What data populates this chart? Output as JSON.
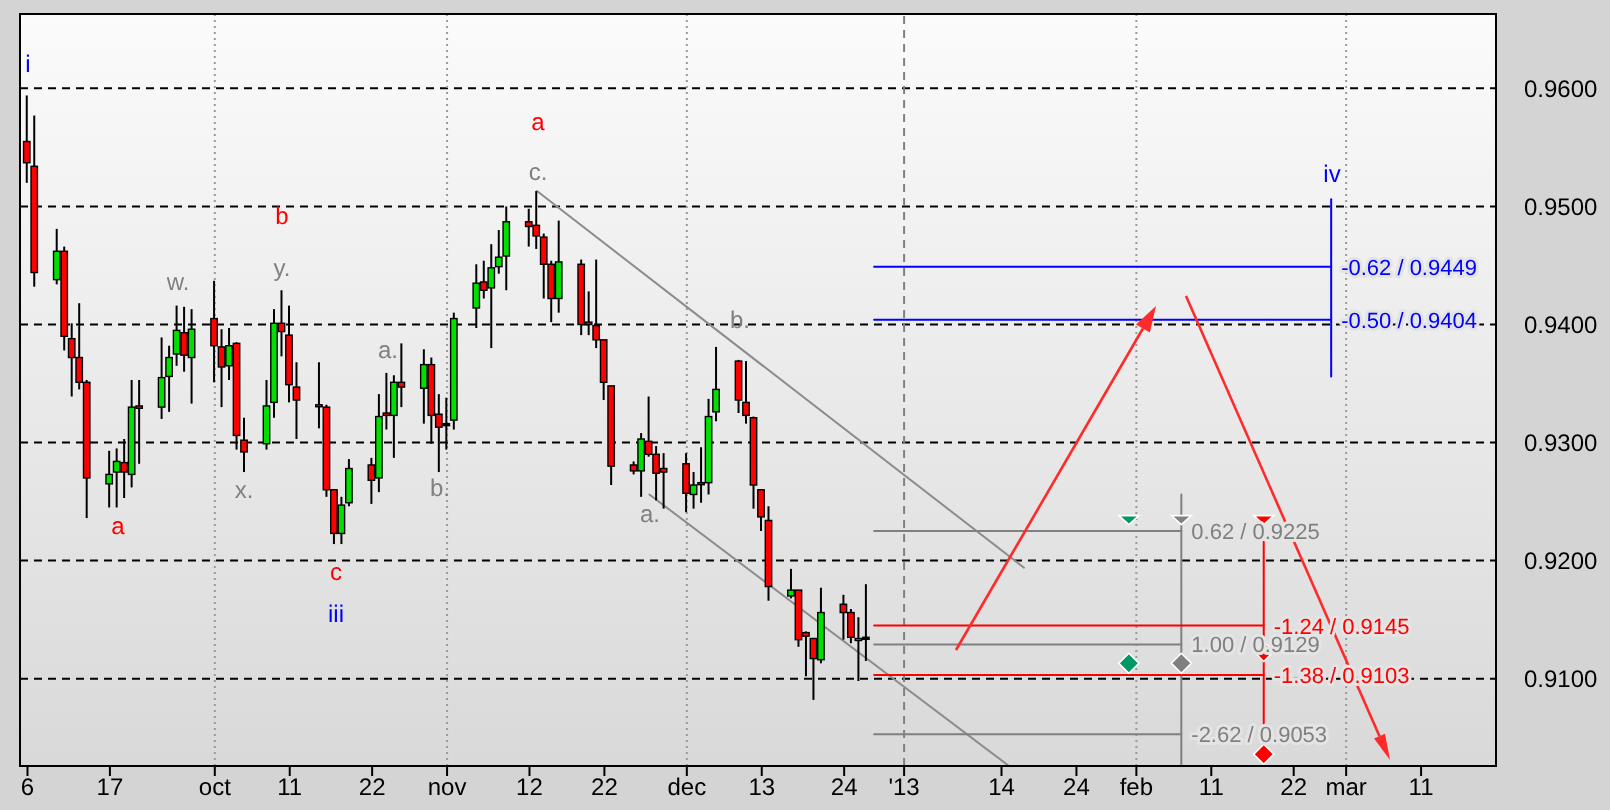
{
  "chart_data": {
    "type": "candlestick",
    "x": [
      "2012-09-06",
      "2012-09-07",
      "2012-09-10",
      "2012-09-11",
      "2012-09-12",
      "2012-09-13",
      "2012-09-14",
      "2012-09-17",
      "2012-09-18",
      "2012-09-19",
      "2012-09-20",
      "2012-09-21",
      "2012-09-24",
      "2012-09-25",
      "2012-09-26",
      "2012-09-27",
      "2012-09-28",
      "2012-10-01",
      "2012-10-02",
      "2012-10-03",
      "2012-10-04",
      "2012-10-05",
      "2012-10-08",
      "2012-10-09",
      "2012-10-10",
      "2012-10-11",
      "2012-10-12",
      "2012-10-15",
      "2012-10-16",
      "2012-10-17",
      "2012-10-18",
      "2012-10-19",
      "2012-10-22",
      "2012-10-23",
      "2012-10-24",
      "2012-10-25",
      "2012-10-26",
      "2012-10-29",
      "2012-10-30",
      "2012-10-31",
      "2012-11-01",
      "2012-11-02",
      "2012-11-05",
      "2012-11-06",
      "2012-11-07",
      "2012-11-08",
      "2012-11-09",
      "2012-11-12",
      "2012-11-13",
      "2012-11-14",
      "2012-11-15",
      "2012-11-16",
      "2012-11-19",
      "2012-11-20",
      "2012-11-21",
      "2012-11-22",
      "2012-11-23",
      "2012-11-26",
      "2012-11-27",
      "2012-11-28",
      "2012-11-29",
      "2012-11-30",
      "2012-12-03",
      "2012-12-04",
      "2012-12-05",
      "2012-12-06",
      "2012-12-07",
      "2012-12-10",
      "2012-12-11",
      "2012-12-12",
      "2012-12-13",
      "2012-12-14",
      "2012-12-17",
      "2012-12-18",
      "2012-12-19",
      "2012-12-20",
      "2012-12-21",
      "2012-12-24",
      "2012-12-25",
      "2012-12-26",
      "2012-12-27"
    ],
    "ohlc": [
      [
        0.9555,
        0.9594,
        0.952,
        0.9537
      ],
      [
        0.9534,
        0.9577,
        0.9432,
        0.9444
      ],
      [
        0.9438,
        0.9481,
        0.9434,
        0.9462
      ],
      [
        0.9462,
        0.9466,
        0.9378,
        0.939
      ],
      [
        0.9388,
        0.9401,
        0.9339,
        0.9372
      ],
      [
        0.9372,
        0.9418,
        0.9345,
        0.9351
      ],
      [
        0.9351,
        0.9353,
        0.9236,
        0.927
      ],
      [
        0.9265,
        0.9293,
        0.9245,
        0.9273
      ],
      [
        0.9275,
        0.9295,
        0.9245,
        0.9284
      ],
      [
        0.9283,
        0.9303,
        0.9253,
        0.9275
      ],
      [
        0.9273,
        0.9353,
        0.9262,
        0.933
      ],
      [
        0.9331,
        0.9353,
        0.9282,
        0.9329
      ],
      [
        0.933,
        0.9389,
        0.932,
        0.9355
      ],
      [
        0.9356,
        0.9382,
        0.9326,
        0.9372
      ],
      [
        0.9375,
        0.9416,
        0.9365,
        0.9395
      ],
      [
        0.9393,
        0.9415,
        0.936,
        0.9374
      ],
      [
        0.9372,
        0.9413,
        0.9333,
        0.9396
      ],
      [
        0.9405,
        0.9437,
        0.9351,
        0.9382
      ],
      [
        0.9381,
        0.9396,
        0.933,
        0.9364
      ],
      [
        0.9365,
        0.9397,
        0.9353,
        0.9382
      ],
      [
        0.9384,
        0.9385,
        0.9294,
        0.9306
      ],
      [
        0.9302,
        0.9321,
        0.9275,
        0.9292
      ],
      [
        0.9299,
        0.9353,
        0.9294,
        0.9331
      ],
      [
        0.9334,
        0.9413,
        0.9321,
        0.9401
      ],
      [
        0.9401,
        0.9429,
        0.9373,
        0.9394
      ],
      [
        0.9391,
        0.9416,
        0.9334,
        0.9349
      ],
      [
        0.9347,
        0.9368,
        0.9303,
        0.9336
      ],
      [
        0.9332,
        0.9368,
        0.9312,
        0.9331
      ],
      [
        0.933,
        0.9332,
        0.9254,
        0.926
      ],
      [
        0.926,
        0.926,
        0.9214,
        0.9223
      ],
      [
        0.9223,
        0.9254,
        0.9214,
        0.9247
      ],
      [
        0.9249,
        0.9286,
        0.9246,
        0.9278
      ],
      [
        0.9281,
        0.9287,
        0.9248,
        0.9268
      ],
      [
        0.927,
        0.9341,
        0.9258,
        0.9322
      ],
      [
        0.9325,
        0.9359,
        0.9311,
        0.9323
      ],
      [
        0.9323,
        0.9357,
        0.9287,
        0.9351
      ],
      [
        0.9351,
        0.9384,
        0.933,
        0.9347
      ],
      [
        0.9346,
        0.9379,
        0.9316,
        0.9366
      ],
      [
        0.9366,
        0.9372,
        0.9299,
        0.9323
      ],
      [
        0.9324,
        0.9341,
        0.9275,
        0.9313
      ],
      [
        0.9316,
        0.9338,
        0.9294,
        0.9316
      ],
      [
        0.9319,
        0.941,
        0.9311,
        0.9405
      ],
      [
        0.9414,
        0.9451,
        0.9397,
        0.9435
      ],
      [
        0.9436,
        0.9454,
        0.9422,
        0.9429
      ],
      [
        0.9431,
        0.9468,
        0.938,
        0.9448
      ],
      [
        0.9449,
        0.948,
        0.9443,
        0.9457
      ],
      [
        0.9458,
        0.95,
        0.9429,
        0.9487
      ],
      [
        0.9487,
        0.9498,
        0.9466,
        0.9483
      ],
      [
        0.9484,
        0.9513,
        0.9464,
        0.9475
      ],
      [
        0.9474,
        0.9477,
        0.9422,
        0.9451
      ],
      [
        0.9451,
        0.9454,
        0.9402,
        0.9422
      ],
      [
        0.9422,
        0.9488,
        0.941,
        0.9453
      ],
      [
        0.9451,
        0.9455,
        0.9391,
        0.94
      ],
      [
        0.9402,
        0.9428,
        0.9391,
        0.94
      ],
      [
        0.9399,
        0.9455,
        0.938,
        0.9387
      ],
      [
        0.9387,
        0.9387,
        0.9336,
        0.9351
      ],
      [
        0.9348,
        0.9348,
        0.9264,
        0.928
      ],
      [
        0.9281,
        0.9284,
        0.9273,
        0.9276
      ],
      [
        0.9276,
        0.9308,
        0.9254,
        0.9303
      ],
      [
        0.9301,
        0.9339,
        0.9288,
        0.929
      ],
      [
        0.929,
        0.9297,
        0.9251,
        0.9274
      ],
      [
        0.9278,
        0.9291,
        0.9244,
        0.9275
      ],
      [
        0.9282,
        0.9291,
        0.9241,
        0.9257
      ],
      [
        0.9256,
        0.9275,
        0.9244,
        0.9264
      ],
      [
        0.9266,
        0.9296,
        0.9249,
        0.9265
      ],
      [
        0.9266,
        0.9337,
        0.9256,
        0.9322
      ],
      [
        0.9326,
        0.9381,
        0.9318,
        0.9345
      ],
      [
        0.9369,
        0.937,
        0.9325,
        0.9336
      ],
      [
        0.9334,
        0.9369,
        0.9316,
        0.9323
      ],
      [
        0.9321,
        0.9322,
        0.9244,
        0.9264
      ],
      [
        0.926,
        0.926,
        0.9225,
        0.9237
      ],
      [
        0.9234,
        0.9246,
        0.9166,
        0.9178
      ],
      [
        0.917,
        0.9193,
        0.9168,
        0.9175
      ],
      [
        0.9175,
        0.9175,
        0.9127,
        0.9133
      ],
      [
        0.9139,
        0.914,
        0.9102,
        0.9136
      ],
      [
        0.9134,
        0.9134,
        0.9082,
        0.9117
      ],
      [
        0.9116,
        0.9177,
        0.9113,
        0.9156
      ],
      [
        0.9163,
        0.9171,
        0.9133,
        0.9156
      ],
      [
        0.9156,
        0.9159,
        0.913,
        0.9135
      ],
      [
        0.9133,
        0.9152,
        0.9098,
        0.9134
      ],
      [
        0.9135,
        0.918,
        0.9115,
        0.9135
      ]
    ],
    "colors": [
      "#ff0000",
      "#ff0000",
      "#00e000",
      "#ff0000",
      "#ff0000",
      "#ff0000",
      "#ff0000",
      "#00e000",
      "#00e000",
      "#ff0000",
      "#00e000",
      "#ff0000",
      "#00e000",
      "#00e000",
      "#00e000",
      "#ff0000",
      "#00e000",
      "#ff0000",
      "#ff0000",
      "#00e000",
      "#ff0000",
      "#ff0000",
      "#00e000",
      "#00e000",
      "#ff0000",
      "#ff0000",
      "#ff0000",
      "#ff0000",
      "#ff0000",
      "#ff0000",
      "#00e000",
      "#00e000",
      "#ff0000",
      "#00e000",
      "#ff0000",
      "#00e000",
      "#ff0000",
      "#00e000",
      "#ff0000",
      "#ff0000",
      "#000000",
      "#00e000",
      "#00e000",
      "#ff0000",
      "#00e000",
      "#00e000",
      "#00e000",
      "#ff0000",
      "#ff0000",
      "#ff0000",
      "#ff0000",
      "#00e000",
      "#ff0000",
      "#ff0000",
      "#ff0000",
      "#ff0000",
      "#ff0000",
      "#ff0000",
      "#00e000",
      "#ff0000",
      "#ff0000",
      "#ff0000",
      "#ff0000",
      "#00e000",
      "#ff0000",
      "#00e000",
      "#00e000",
      "#ff0000",
      "#ff0000",
      "#ff0000",
      "#ff0000",
      "#ff0000",
      "#00e000",
      "#ff0000",
      "#ff0000",
      "#ff0000",
      "#00e000",
      "#ff0000",
      "#ff0000",
      "#00e000",
      "#000000"
    ],
    "series": [
      {
        "type": "line",
        "color": "#8c8c8c",
        "x": [
          "2012-11-13",
          "2013-01-17"
        ],
        "values": [
          0.9513,
          0.9194
        ]
      },
      {
        "type": "line",
        "color": "#8c8c8c",
        "x": [
          "2012-11-28",
          "2013-01-15"
        ],
        "values": [
          0.9256,
          0.9026
        ]
      },
      {
        "type": "line",
        "color": "#0000ff",
        "x": [
          "2012-12-28",
          "2013-02-27"
        ],
        "values": [
          0.9449,
          0.9449
        ]
      },
      {
        "type": "line",
        "color": "#0000ff",
        "x": [
          "2012-12-28",
          "2013-02-27"
        ],
        "values": [
          0.9404,
          0.9404
        ]
      },
      {
        "type": "line",
        "color": "#0000ff",
        "x": [
          "2013-02-27",
          "2013-02-27"
        ],
        "values": [
          0.9506,
          0.9356
        ]
      },
      {
        "type": "line",
        "color": "#808080",
        "x": [
          "2012-12-28",
          "2013-02-07"
        ],
        "values": [
          0.9225,
          0.9225
        ]
      },
      {
        "type": "line",
        "color": "#808080",
        "x": [
          "2012-12-28",
          "2013-02-07"
        ],
        "values": [
          0.9129,
          0.9129
        ]
      },
      {
        "type": "line",
        "color": "#808080",
        "x": [
          "2012-12-28",
          "2013-02-07"
        ],
        "values": [
          0.9053,
          0.9053
        ]
      },
      {
        "type": "line",
        "color": "#808080",
        "x": [
          "2013-02-07",
          "2013-02-07"
        ],
        "values": [
          0.9256,
          0.9026
        ]
      },
      {
        "type": "line",
        "color": "#ff0000",
        "x": [
          "2012-12-28",
          "2013-02-18"
        ],
        "values": [
          0.9145,
          0.9145
        ]
      },
      {
        "type": "line",
        "color": "#ff0000",
        "x": [
          "2012-12-28",
          "2013-02-18"
        ],
        "values": [
          0.9103,
          0.9103
        ]
      },
      {
        "type": "line",
        "color": "#ff0000",
        "x": [
          "2013-02-18",
          "2013-02-18"
        ],
        "values": [
          0.9216,
          0.9052
        ]
      },
      {
        "type": "scatter",
        "marker": "triangle",
        "x": [
          "2013-01-31",
          "2013-02-07",
          "2013-02-18"
        ],
        "values": [
          0.9233,
          0.9233,
          0.9233
        ],
        "colors": [
          "#009966",
          "#808080",
          "#ff0000"
        ]
      },
      {
        "type": "scatter",
        "marker": "diamond",
        "x": [
          "2013-01-31",
          "2013-02-07",
          "2013-02-18",
          "2013-02-18"
        ],
        "values": [
          0.9113,
          0.9113,
          0.9123,
          0.9036
        ],
        "colors": [
          "#009966",
          "#808080",
          "#ff0000",
          "#ff0000"
        ]
      }
    ],
    "xlim": [
      "2012-09-05",
      "2013-03-21"
    ],
    "xticks": [
      {
        "value": "2012-09-06",
        "label": "6"
      },
      {
        "value": "2012-09-17",
        "label": "17"
      },
      {
        "value": "2012-10-01",
        "label": "oct"
      },
      {
        "value": "2012-10-11",
        "label": "11"
      },
      {
        "value": "2012-10-22",
        "label": "22"
      },
      {
        "value": "2012-11-01",
        "label": "nov"
      },
      {
        "value": "2012-11-12",
        "label": "12"
      },
      {
        "value": "2012-11-22",
        "label": "22"
      },
      {
        "value": "2012-12-03",
        "label": "dec"
      },
      {
        "value": "2012-12-13",
        "label": "13"
      },
      {
        "value": "2012-12-24",
        "label": "24"
      },
      {
        "value": "2013-01-01",
        "label": "'13"
      },
      {
        "value": "2013-01-14",
        "label": "14"
      },
      {
        "value": "2013-01-24",
        "label": "24"
      },
      {
        "value": "2013-02-01",
        "label": "feb"
      },
      {
        "value": "2013-02-11",
        "label": "11"
      },
      {
        "value": "2013-02-22",
        "label": "22"
      },
      {
        "value": "2013-03-01",
        "label": "mar"
      },
      {
        "value": "2013-03-11",
        "label": "11"
      }
    ],
    "ylim": [
      0.9026,
      0.9663
    ],
    "yticks": [
      {
        "value": 0.91,
        "label": "0.9100"
      },
      {
        "value": 0.92,
        "label": "0.9200"
      },
      {
        "value": 0.93,
        "label": "0.9300"
      },
      {
        "value": 0.94,
        "label": "0.9400"
      },
      {
        "value": 0.95,
        "label": "0.9500"
      },
      {
        "value": 0.96,
        "label": "0.9600"
      }
    ],
    "grid": "y",
    "ref_lines": [
      {
        "axis": "x",
        "value": "2012-10-01",
        "color": "#9a9a9a",
        "line_style": "dotted"
      },
      {
        "axis": "x",
        "value": "2012-11-01",
        "color": "#9a9a9a",
        "line_style": "dotted"
      },
      {
        "axis": "x",
        "value": "2012-12-03",
        "color": "#9a9a9a",
        "line_style": "dotted"
      },
      {
        "axis": "x",
        "value": "2013-01-01",
        "color": "#808080",
        "line_style": "dashed"
      },
      {
        "axis": "x",
        "value": "2013-02-01",
        "color": "#9a9a9a",
        "line_style": "dotted"
      },
      {
        "axis": "x",
        "value": "2013-03-01",
        "color": "#9a9a9a",
        "line_style": "dotted"
      }
    ],
    "annotations": [
      "i",
      "a",
      "w.",
      "b",
      "y.",
      "x.",
      "c",
      "iii",
      "a.",
      "b.",
      "a",
      "c.",
      "a.",
      "b.",
      "iv",
      {
        "text": "-0.62 / 0.9449",
        "x": "2013-02-27",
        "y": 0.9449
      },
      {
        "text": "-0.50 / 0.9404",
        "x": "2013-02-27",
        "y": 0.9404
      },
      {
        "text": "0.62 / 0.9225",
        "x": "2013-02-07",
        "y": 0.9225
      },
      {
        "text": "1.00 / 0.9129",
        "x": "2013-02-07",
        "y": 0.9129
      },
      {
        "text": "-2.62 / 0.9053",
        "x": "2013-02-07",
        "y": 0.9053
      },
      {
        "text": "-1.24 / 0.9145",
        "x": "2013-02-18",
        "y": 0.9145
      },
      {
        "text": "-1.38 / 0.9103",
        "x": "2013-02-18",
        "y": 0.9103
      }
    ]
  }
}
